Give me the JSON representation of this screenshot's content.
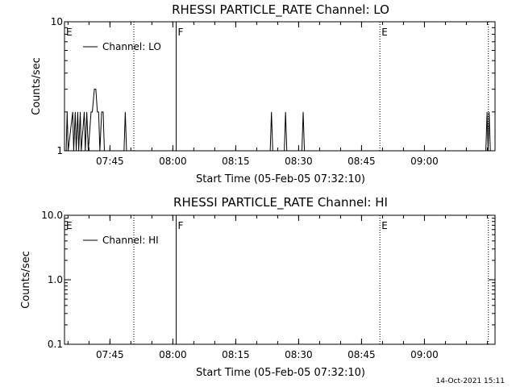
{
  "footer": {
    "timestamp": "14-Oct-2021 15:11"
  },
  "chart_data": [
    {
      "type": "line",
      "title": "RHESSI PARTICLE_RATE Channel: LO",
      "xlabel": "Start Time (05-Feb-05 07:32:10)",
      "ylabel": "Counts/sec",
      "yscale": "log",
      "xlim": [
        7.5694,
        9.2806
      ],
      "ylim": [
        1,
        10
      ],
      "x_ticks": [
        7.75,
        8.0,
        8.25,
        8.5,
        8.75,
        9.0
      ],
      "x_tick_labels": [
        "07:45",
        "08:00",
        "08:15",
        "08:30",
        "08:45",
        "09:00"
      ],
      "y_ticks": [
        1,
        10
      ],
      "y_tick_labels": [
        "1",
        "10"
      ],
      "legend": {
        "label": "Channel: LO",
        "placement": "top-left"
      },
      "series": [
        {
          "name": "Channel: LO",
          "points": [
            [
              7.576,
              1
            ],
            [
              7.58,
              2
            ],
            [
              7.584,
              1
            ],
            [
              7.602,
              2
            ],
            [
              7.606,
              1
            ],
            [
              7.612,
              2
            ],
            [
              7.616,
              1
            ],
            [
              7.622,
              2
            ],
            [
              7.626,
              1
            ],
            [
              7.632,
              2
            ],
            [
              7.636,
              1
            ],
            [
              7.648,
              2
            ],
            [
              7.652,
              1
            ],
            [
              7.658,
              2
            ],
            [
              7.664,
              1
            ],
            [
              7.675,
              2
            ],
            [
              7.68,
              2
            ],
            [
              7.688,
              3
            ],
            [
              7.694,
              3
            ],
            [
              7.7,
              2
            ],
            [
              7.705,
              2
            ],
            [
              7.71,
              1
            ],
            [
              7.717,
              2
            ],
            [
              7.723,
              2
            ],
            [
              7.728,
              1
            ],
            [
              7.806,
              1
            ],
            [
              7.811,
              2
            ],
            [
              7.816,
              1
            ],
            [
              8.387,
              1
            ],
            [
              8.392,
              2
            ],
            [
              8.397,
              1
            ],
            [
              8.443,
              1
            ],
            [
              8.448,
              2
            ],
            [
              8.453,
              1
            ],
            [
              8.513,
              1
            ],
            [
              8.518,
              2
            ],
            [
              8.523,
              1
            ],
            [
              9.244,
              1
            ],
            [
              9.249,
              2
            ],
            [
              9.253,
              1
            ],
            [
              9.257,
              2
            ],
            [
              9.262,
              1
            ]
          ]
        }
      ],
      "markers": [
        {
          "label": "E",
          "x": 7.5694,
          "style": "dotted"
        },
        {
          "label": "",
          "x": 7.845,
          "style": "dotted"
        },
        {
          "label": "F",
          "x": 8.0133,
          "style": "solid"
        },
        {
          "label": "E",
          "x": 8.823,
          "style": "dotted"
        },
        {
          "label": "",
          "x": 9.254,
          "style": "dotted"
        }
      ]
    },
    {
      "type": "line",
      "title": "RHESSI PARTICLE_RATE Channel: HI",
      "xlabel": "Start Time (05-Feb-05 07:32:10)",
      "ylabel": "Counts/sec",
      "yscale": "log",
      "xlim": [
        7.5694,
        9.2806
      ],
      "ylim": [
        0.1,
        10
      ],
      "x_ticks": [
        7.75,
        8.0,
        8.25,
        8.5,
        8.75,
        9.0
      ],
      "x_tick_labels": [
        "07:45",
        "08:00",
        "08:15",
        "08:30",
        "08:45",
        "09:00"
      ],
      "y_ticks": [
        0.1,
        1,
        10
      ],
      "y_tick_labels": [
        "0.1",
        "1.0",
        "10.0"
      ],
      "legend": {
        "label": "Channel: HI",
        "placement": "top-left"
      },
      "series": [
        {
          "name": "Channel: HI",
          "points": []
        }
      ],
      "markers": [
        {
          "label": "E",
          "x": 7.5694,
          "style": "dotted"
        },
        {
          "label": "",
          "x": 7.845,
          "style": "dotted"
        },
        {
          "label": "F",
          "x": 8.0133,
          "style": "solid"
        },
        {
          "label": "E",
          "x": 8.823,
          "style": "dotted"
        },
        {
          "label": "",
          "x": 9.254,
          "style": "dotted"
        }
      ]
    }
  ]
}
